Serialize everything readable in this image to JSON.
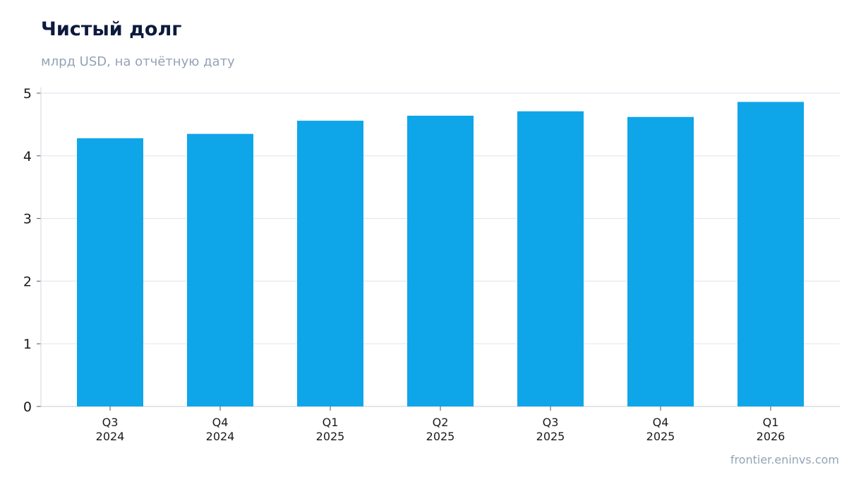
{
  "header": {
    "title": "Чистый долг",
    "subtitle": "млрд USD, на отчётную дату"
  },
  "footer": {
    "source": "frontier.eninvs.com"
  },
  "colors": {
    "bar": "#0fa5e9",
    "title": "#0c1a3d",
    "muted": "#94a3b8",
    "grid": "#e2e8f0"
  },
  "chart_data": {
    "type": "bar",
    "categories": [
      [
        "Q3",
        "2024"
      ],
      [
        "Q4",
        "2024"
      ],
      [
        "Q1",
        "2025"
      ],
      [
        "Q2",
        "2025"
      ],
      [
        "Q3",
        "2025"
      ],
      [
        "Q4",
        "2025"
      ],
      [
        "Q1",
        "2026"
      ]
    ],
    "values": [
      4.28,
      4.35,
      4.56,
      4.64,
      4.71,
      4.62,
      4.86
    ],
    "title": "Чистый долг",
    "subtitle": "млрд USD, на отчётную дату",
    "xlabel": "",
    "ylabel": "",
    "ylim": [
      0,
      5
    ],
    "yticks": [
      0,
      1,
      2,
      3,
      4,
      5
    ],
    "grid": true,
    "legend": "none"
  }
}
